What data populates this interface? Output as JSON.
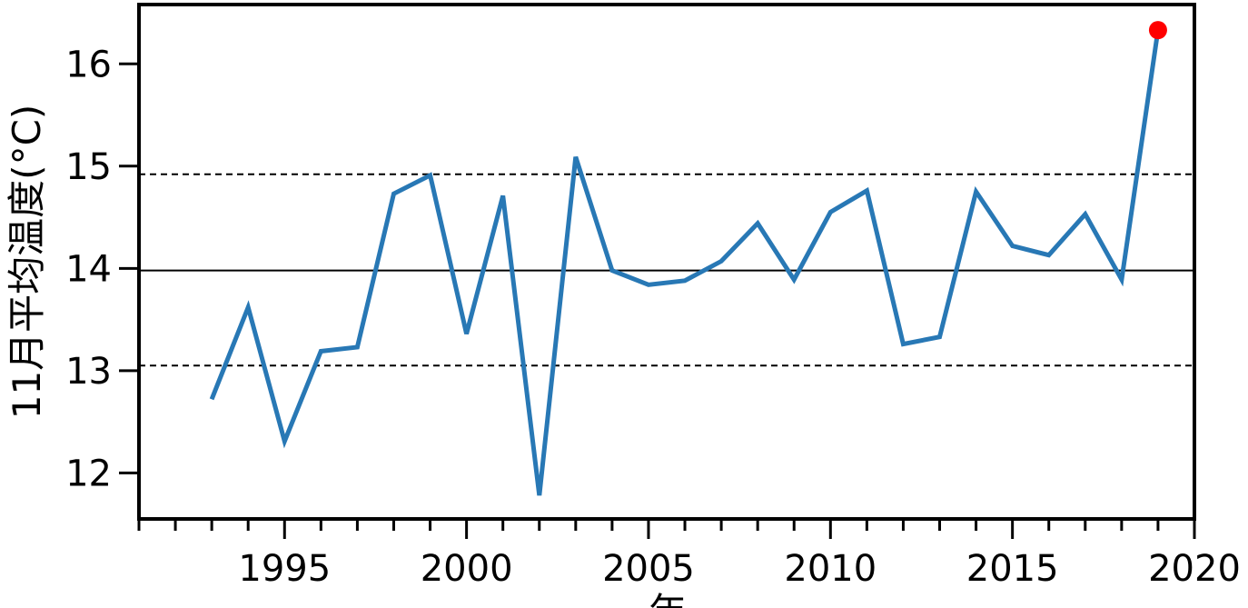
{
  "chart_data": {
    "type": "line",
    "title": "",
    "xlabel": "年",
    "ylabel": "11月平均温度(°C)",
    "xlim": [
      1991,
      2020
    ],
    "ylim": [
      11.55,
      16.58
    ],
    "x_ticks": [
      1995,
      2000,
      2005,
      2010,
      2015,
      2020
    ],
    "x_minor_ticks": [
      1991,
      1992,
      1993,
      1994,
      1995,
      1996,
      1997,
      1998,
      1999,
      2000,
      2001,
      2002,
      2003,
      2004,
      2005,
      2006,
      2007,
      2008,
      2009,
      2010,
      2011,
      2012,
      2013,
      2014,
      2015,
      2016,
      2017,
      2018,
      2019,
      2020
    ],
    "y_ticks": [
      12,
      13,
      14,
      15,
      16
    ],
    "grid": false,
    "reference_lines": [
      {
        "y": 13.98,
        "style": "solid",
        "color": "#000000"
      },
      {
        "y": 14.92,
        "style": "dashed",
        "color": "#000000"
      },
      {
        "y": 13.05,
        "style": "dashed",
        "color": "#000000"
      }
    ],
    "series": [
      {
        "color": "#2878b5",
        "x": [
          1993,
          1994,
          1995,
          1996,
          1997,
          1998,
          1999,
          2000,
          2001,
          2002,
          2003,
          2004,
          2005,
          2006,
          2007,
          2008,
          2009,
          2010,
          2011,
          2012,
          2013,
          2014,
          2015,
          2016,
          2017,
          2018,
          2019
        ],
        "values": [
          12.72,
          13.62,
          12.31,
          13.19,
          13.23,
          14.73,
          14.91,
          13.36,
          14.71,
          11.78,
          15.09,
          13.98,
          13.84,
          13.88,
          14.07,
          14.44,
          13.89,
          14.55,
          14.76,
          13.26,
          13.33,
          14.75,
          14.22,
          14.13,
          14.53,
          13.89,
          16.33
        ]
      }
    ],
    "highlight_point": {
      "x": 2019,
      "y": 16.33,
      "color": "#ff0000"
    }
  }
}
